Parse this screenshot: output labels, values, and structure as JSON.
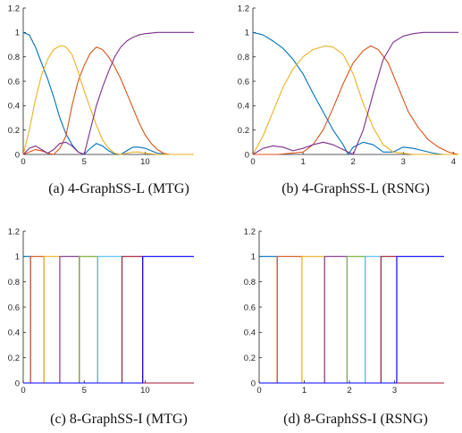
{
  "chart_data": [
    {
      "type": "line",
      "caption": "(a) 4-GraphSS-L (MTG)",
      "xlim": [
        0,
        14
      ],
      "ylim": [
        0,
        1.2
      ],
      "xticks": [
        0,
        5,
        10
      ],
      "yticks": [
        0,
        0.2,
        0.4,
        0.6,
        0.8,
        1,
        1.2
      ],
      "series": [
        {
          "color": "#0072BD",
          "x": [
            0,
            0.5,
            1,
            1.5,
            2,
            2.5,
            3,
            3.5,
            4,
            4.5,
            5,
            5.5,
            6,
            6.5,
            7,
            7.5,
            8,
            8.5,
            9,
            9.5,
            10,
            10.5,
            11,
            12,
            13,
            14
          ],
          "y": [
            1,
            0.98,
            0.88,
            0.75,
            0.62,
            0.47,
            0.3,
            0.17,
            0.08,
            0.02,
            0,
            0.05,
            0.09,
            0.07,
            0.03,
            0.005,
            0,
            0.03,
            0.06,
            0.06,
            0.05,
            0.03,
            0.01,
            0,
            0,
            0
          ]
        },
        {
          "color": "#D95319",
          "x": [
            0,
            0.5,
            1,
            1.5,
            2,
            2.5,
            3,
            3.5,
            4,
            4.5,
            5,
            5.5,
            6,
            6.5,
            7,
            7.5,
            8,
            8.5,
            9,
            9.5,
            10,
            10.5,
            11,
            11.5,
            12,
            13,
            14
          ],
          "y": [
            0,
            0.02,
            0.04,
            0.03,
            0.01,
            0,
            0.05,
            0.15,
            0.4,
            0.6,
            0.73,
            0.83,
            0.88,
            0.86,
            0.8,
            0.72,
            0.62,
            0.5,
            0.38,
            0.26,
            0.16,
            0.09,
            0.04,
            0.01,
            0,
            0,
            0
          ]
        },
        {
          "color": "#EDB120",
          "x": [
            0,
            0.5,
            1,
            1.5,
            2,
            2.5,
            3,
            3.3,
            3.5,
            4,
            4.5,
            5,
            5.5,
            6,
            6.5,
            7,
            7.5,
            8,
            8.5,
            9,
            9.5,
            10,
            11,
            12,
            14
          ],
          "y": [
            0,
            0.2,
            0.45,
            0.65,
            0.78,
            0.86,
            0.89,
            0.89,
            0.88,
            0.82,
            0.68,
            0.52,
            0.38,
            0.24,
            0.12,
            0.05,
            0.01,
            0,
            0.01,
            0.02,
            0.02,
            0.01,
            0,
            0,
            0
          ]
        },
        {
          "color": "#7E2F8E",
          "x": [
            0,
            0.5,
            1,
            1.5,
            2,
            2.5,
            3,
            3.5,
            4,
            4.5,
            5,
            5.5,
            6,
            6.5,
            7,
            7.5,
            8,
            8.5,
            9,
            9.5,
            10,
            10.5,
            11,
            12,
            13,
            14
          ],
          "y": [
            0,
            0.05,
            0.07,
            0.04,
            0.01,
            0.04,
            0.09,
            0.1,
            0.07,
            0.02,
            0,
            0.2,
            0.4,
            0.55,
            0.68,
            0.8,
            0.88,
            0.93,
            0.96,
            0.98,
            0.99,
            0.995,
            1,
            1,
            1,
            1
          ]
        }
      ]
    },
    {
      "type": "line",
      "caption": "(b) 4-GraphSS-L (RSNG)",
      "xlim": [
        0,
        4.1
      ],
      "ylim": [
        0,
        1.2
      ],
      "xticks": [
        0,
        1,
        2,
        3,
        4
      ],
      "yticks": [
        0,
        0.2,
        0.4,
        0.6,
        0.8,
        1,
        1.2
      ],
      "series": [
        {
          "color": "#0072BD",
          "x": [
            0,
            0.2,
            0.4,
            0.6,
            0.8,
            1,
            1.2,
            1.4,
            1.6,
            1.8,
            1.9,
            2,
            2.2,
            2.4,
            2.6,
            2.8,
            3,
            3.2,
            3.4,
            3.6,
            3.8,
            4.1
          ],
          "y": [
            1,
            0.98,
            0.93,
            0.87,
            0.78,
            0.66,
            0.5,
            0.35,
            0.2,
            0.08,
            0,
            0.06,
            0.1,
            0.08,
            0.02,
            0.02,
            0.06,
            0.05,
            0.03,
            0.01,
            0,
            0
          ]
        },
        {
          "color": "#D95319",
          "x": [
            0,
            0.5,
            1,
            1.2,
            1.4,
            1.6,
            1.8,
            2,
            2.2,
            2.35,
            2.5,
            2.7,
            2.9,
            3.1,
            3.3,
            3.5,
            3.7,
            3.9,
            4.1
          ],
          "y": [
            0,
            0,
            0.02,
            0.08,
            0.2,
            0.38,
            0.58,
            0.75,
            0.85,
            0.89,
            0.86,
            0.75,
            0.55,
            0.35,
            0.22,
            0.12,
            0.06,
            0.02,
            0
          ]
        },
        {
          "color": "#EDB120",
          "x": [
            0,
            0.2,
            0.4,
            0.6,
            0.8,
            1,
            1.2,
            1.45,
            1.6,
            1.8,
            2,
            2.2,
            2.4,
            2.6,
            2.8,
            3,
            3.2,
            3.5,
            4.1
          ],
          "y": [
            0,
            0.15,
            0.35,
            0.55,
            0.7,
            0.8,
            0.86,
            0.89,
            0.88,
            0.82,
            0.66,
            0.42,
            0.22,
            0.08,
            0.02,
            0.01,
            0,
            0,
            0
          ]
        },
        {
          "color": "#7E2F8E",
          "x": [
            0,
            0.2,
            0.4,
            0.6,
            0.8,
            1,
            1.2,
            1.4,
            1.6,
            1.8,
            2,
            2.2,
            2.4,
            2.6,
            2.8,
            3,
            3.2,
            3.4,
            3.6,
            4.1
          ],
          "y": [
            0,
            0.05,
            0.07,
            0.06,
            0.03,
            0.05,
            0.08,
            0.1,
            0.08,
            0.04,
            0,
            0.2,
            0.5,
            0.78,
            0.92,
            0.97,
            0.99,
            1,
            1,
            1
          ]
        }
      ]
    },
    {
      "type": "line",
      "caption": "(c) 8-GraphSS-I (MTG)",
      "xlim": [
        0,
        14
      ],
      "ylim": [
        0,
        1.2
      ],
      "xticks": [
        0,
        5,
        10
      ],
      "yticks": [
        0,
        0.2,
        0.4,
        0.6,
        0.8,
        1,
        1.2
      ],
      "series": [
        {
          "color": "#0072BD",
          "x": [
            0,
            0.6,
            0.6,
            14
          ],
          "y": [
            1,
            1,
            0,
            0
          ]
        },
        {
          "color": "#D95319",
          "x": [
            0,
            0.6,
            0.6,
            1.7,
            1.7,
            14
          ],
          "y": [
            0,
            0,
            1,
            1,
            0,
            0
          ]
        },
        {
          "color": "#EDB120",
          "x": [
            0,
            1.7,
            1.7,
            3.0,
            3.0,
            14
          ],
          "y": [
            0,
            0,
            1,
            1,
            0,
            0
          ]
        },
        {
          "color": "#7E2F8E",
          "x": [
            0,
            3.0,
            3.0,
            4.6,
            4.6,
            14
          ],
          "y": [
            0,
            0,
            1,
            1,
            0,
            0
          ]
        },
        {
          "color": "#77AC30",
          "x": [
            0,
            4.6,
            4.6,
            6.1,
            6.1,
            14
          ],
          "y": [
            0,
            0,
            1,
            1,
            0,
            0
          ]
        },
        {
          "color": "#4DBEEE",
          "x": [
            0,
            6.1,
            6.1,
            8.1,
            8.1,
            14
          ],
          "y": [
            0,
            0,
            1,
            1,
            0,
            0
          ]
        },
        {
          "color": "#A2142F",
          "x": [
            0,
            8.1,
            8.1,
            9.8,
            9.8,
            14
          ],
          "y": [
            0,
            0,
            1,
            1,
            0,
            0
          ]
        },
        {
          "color": "#0000FF",
          "x": [
            0,
            9.8,
            9.8,
            14
          ],
          "y": [
            0,
            0,
            1,
            1
          ]
        }
      ]
    },
    {
      "type": "line",
      "caption": "(d) 8-GraphSS-I (RSNG)",
      "xlim": [
        0,
        4.1
      ],
      "ylim": [
        0,
        1.2
      ],
      "xticks": [
        0,
        1,
        2,
        3
      ],
      "yticks": [
        0,
        0.2,
        0.4,
        0.6,
        0.8,
        1,
        1.2
      ],
      "series": [
        {
          "color": "#0072BD",
          "x": [
            0,
            0.4,
            0.4,
            4.1
          ],
          "y": [
            1,
            1,
            0,
            0
          ]
        },
        {
          "color": "#D95319",
          "x": [
            0,
            0.4,
            0.4,
            0.95,
            0.95,
            4.1
          ],
          "y": [
            0,
            0,
            1,
            1,
            0,
            0
          ]
        },
        {
          "color": "#EDB120",
          "x": [
            0,
            0.95,
            0.95,
            1.45,
            1.45,
            4.1
          ],
          "y": [
            0,
            0,
            1,
            1,
            0,
            0
          ]
        },
        {
          "color": "#7E2F8E",
          "x": [
            0,
            1.45,
            1.45,
            1.95,
            1.95,
            4.1
          ],
          "y": [
            0,
            0,
            1,
            1,
            0,
            0
          ]
        },
        {
          "color": "#77AC30",
          "x": [
            0,
            1.95,
            1.95,
            2.35,
            2.35,
            4.1
          ],
          "y": [
            0,
            0,
            1,
            1,
            0,
            0
          ]
        },
        {
          "color": "#4DBEEE",
          "x": [
            0,
            2.35,
            2.35,
            2.7,
            2.7,
            4.1
          ],
          "y": [
            0,
            0,
            1,
            1,
            0,
            0
          ]
        },
        {
          "color": "#A2142F",
          "x": [
            0,
            2.7,
            2.7,
            3.05,
            3.05,
            4.1
          ],
          "y": [
            0,
            0,
            1,
            1,
            0,
            0
          ]
        },
        {
          "color": "#0000FF",
          "x": [
            0,
            3.05,
            3.05,
            4.1
          ],
          "y": [
            0,
            0,
            1,
            1
          ]
        }
      ]
    }
  ]
}
